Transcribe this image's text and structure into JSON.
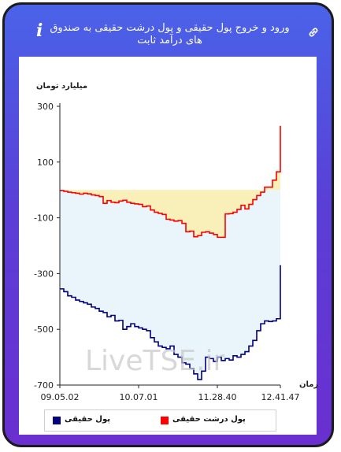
{
  "header": {
    "title": "ورود و خروج پول حقیقی و پول درشت حقیقی به صندوق های درآمد ثابت",
    "info_icon": "info-icon",
    "link_icon": "link-icon",
    "accent": "#5a3fd6"
  },
  "watermark": "LiveTSE.ir",
  "chart_data": {
    "type": "line",
    "ylabel": "میلیارد تومان",
    "xlabel": "زمان",
    "ylim": [
      -700,
      300
    ],
    "yticks": [
      300,
      100,
      -100,
      -300,
      -500,
      -700
    ],
    "xticks": [
      "09.05.02",
      "10.07.01",
      "11.28.40",
      "12.41.47"
    ],
    "grid": false,
    "legend_position": "bottom",
    "series": [
      {
        "name": "پول درشت حقیقی",
        "color": "#ff0000",
        "fill": "#f8f0b8",
        "x": [
          0,
          0.5,
          1,
          1.5,
          2,
          2.5,
          3,
          3.5,
          4,
          4.5,
          5,
          5.5,
          6,
          6.5,
          7,
          7.5,
          8,
          8.5,
          9,
          9.5,
          10,
          10.5,
          11,
          11.5,
          12,
          12.5,
          13,
          13.5,
          14,
          14.5,
          15,
          15.5,
          16,
          16.5,
          17,
          17.5,
          18,
          18.5,
          19,
          19.5,
          20,
          20.5,
          21,
          21.5,
          22,
          22.5,
          23,
          23.5,
          24,
          24.5,
          25,
          25.5,
          26,
          26.5,
          27,
          27.5,
          28
        ],
        "values": [
          -2,
          -5,
          -8,
          -10,
          -12,
          -15,
          -12,
          -14,
          -18,
          -20,
          -24,
          -48,
          -38,
          -44,
          -46,
          -40,
          -37,
          -44,
          -48,
          -50,
          -52,
          -60,
          -58,
          -72,
          -80,
          -84,
          -88,
          -105,
          -108,
          -112,
          -110,
          -120,
          -150,
          -148,
          -168,
          -164,
          -152,
          -150,
          -155,
          -160,
          -170,
          -170,
          -86,
          -85,
          -80,
          -70,
          -55,
          -68,
          -52,
          -35,
          -20,
          -8,
          10,
          10,
          35,
          65,
          230
        ]
      },
      {
        "name": "پول حقیقی",
        "color": "#000080",
        "fill": "#eaf5fb",
        "x": [
          0,
          0.5,
          1,
          1.5,
          2,
          2.5,
          3,
          3.5,
          4,
          4.5,
          5,
          5.5,
          6,
          6.5,
          7,
          7.5,
          8,
          8.5,
          9,
          9.5,
          10,
          10.5,
          11,
          11.5,
          12,
          12.5,
          13,
          13.5,
          14,
          14.5,
          15,
          15.5,
          16,
          16.5,
          17,
          17.5,
          18,
          18.5,
          19,
          19.5,
          20,
          20.5,
          21,
          21.5,
          22,
          22.5,
          23,
          23.5,
          24,
          24.5,
          25,
          25.5,
          26,
          26.5,
          27,
          27.5,
          28
        ],
        "values": [
          -355,
          -365,
          -380,
          -385,
          -395,
          -400,
          -405,
          -410,
          -420,
          -425,
          -435,
          -440,
          -455,
          -450,
          -470,
          -468,
          -500,
          -490,
          -480,
          -490,
          -495,
          -500,
          -505,
          -530,
          -545,
          -560,
          -565,
          -570,
          -560,
          -590,
          -600,
          -620,
          -625,
          -640,
          -660,
          -680,
          -650,
          -600,
          -605,
          -615,
          -600,
          -612,
          -605,
          -610,
          -595,
          -600,
          -590,
          -580,
          -560,
          -540,
          -505,
          -480,
          -470,
          -472,
          -470,
          -462,
          -270
        ]
      }
    ]
  }
}
